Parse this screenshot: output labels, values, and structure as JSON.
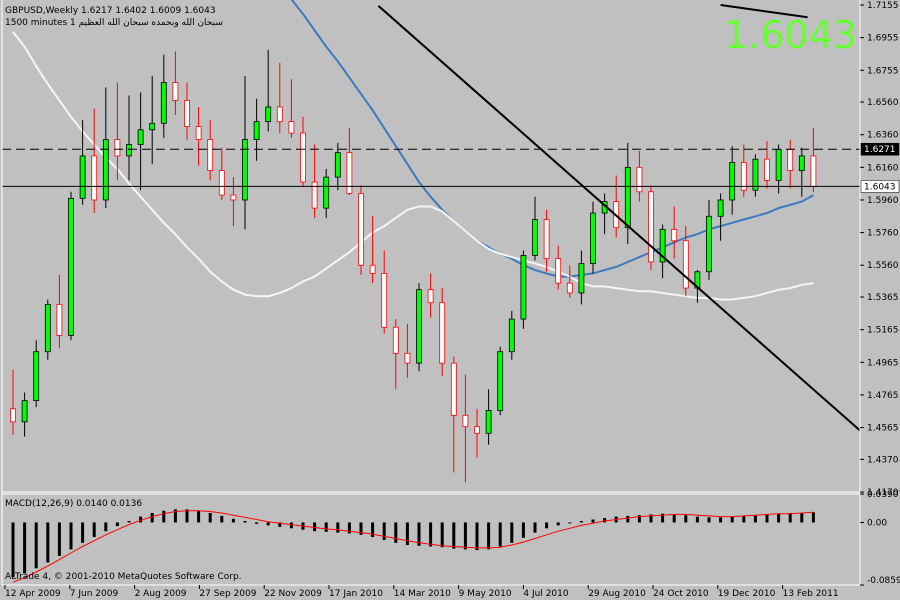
{
  "header": {
    "symbol_line": "GBPUSD,Weekly  1.6217 1.6402 1.6009 1.6043",
    "sub_line": "1500 minutes 1 سبحان الله وبحمده سبحان الله العظيم"
  },
  "big_price": "1.6043",
  "copyright": "ALTrade 4, © 2001-2010 MetaQuotes Software Corp.",
  "colors": {
    "background": "#c0c0c0",
    "bull_candle": "#00ff00",
    "bear_candle": "#ffffff",
    "bull_wick": "#000000",
    "bear_wick": "#ff0000",
    "ma_slow": "#3a7bc0",
    "ma_fast": "#f5f5f5",
    "trendline": "#000000",
    "big_price": "#66ff33",
    "macd_signal": "#ff0000",
    "macd_hist": "#000000"
  },
  "chart_data": {
    "type": "candlestick",
    "symbol": "GBPUSD",
    "timeframe": "Weekly",
    "last_bar": {
      "open": 1.6217,
      "high": 1.6402,
      "low": 1.6009,
      "close": 1.6043
    },
    "price_range": [
      1.417,
      1.7155
    ],
    "price_ticks": [
      "1.7155",
      "1.6955",
      "1.6755",
      "1.6560",
      "1.6360",
      "1.6160",
      "1.5960",
      "1.5760",
      "1.5560",
      "1.5365",
      "1.5165",
      "1.4965",
      "1.4765",
      "1.4565",
      "1.4370",
      "1.4170"
    ],
    "x_ticks": [
      "12 Apr 2009",
      "7 Jun 2009",
      "2 Aug 2009",
      "27 Sep 2009",
      "22 Nov 2009",
      "17 Jan 2010",
      "14 Mar 2010",
      "9 May 2010",
      "4 Jul 2010",
      "29 Aug 2010",
      "24 Oct 2010",
      "19 Dec 2010",
      "13 Feb 2011"
    ],
    "hlines": [
      {
        "label": "1.6271",
        "value": 1.6271,
        "style": "dashed"
      },
      {
        "label": "1.6043",
        "value": 1.6043,
        "style": "solid"
      }
    ],
    "trendline": {
      "from": [
        31.5,
        1.715
      ],
      "to": [
        50,
        1.599
      ]
    },
    "candles": [
      [
        1.468,
        1.492,
        1.452,
        1.46
      ],
      [
        1.46,
        1.478,
        1.451,
        1.473
      ],
      [
        1.473,
        1.51,
        1.469,
        1.503
      ],
      [
        1.503,
        1.535,
        1.498,
        1.532
      ],
      [
        1.532,
        1.55,
        1.505,
        1.513
      ],
      [
        1.513,
        1.601,
        1.51,
        1.597
      ],
      [
        1.597,
        1.645,
        1.593,
        1.623
      ],
      [
        1.623,
        1.652,
        1.588,
        1.596
      ],
      [
        1.596,
        1.665,
        1.591,
        1.633
      ],
      [
        1.633,
        1.668,
        1.608,
        1.623
      ],
      [
        1.623,
        1.66,
        1.608,
        1.63
      ],
      [
        1.63,
        1.662,
        1.602,
        1.639
      ],
      [
        1.639,
        1.672,
        1.618,
        1.643
      ],
      [
        1.643,
        1.685,
        1.634,
        1.668
      ],
      [
        1.668,
        1.687,
        1.648,
        1.657
      ],
      [
        1.657,
        1.668,
        1.633,
        1.641
      ],
      [
        1.641,
        1.653,
        1.617,
        1.633
      ],
      [
        1.633,
        1.645,
        1.608,
        1.614
      ],
      [
        1.614,
        1.628,
        1.596,
        1.599
      ],
      [
        1.599,
        1.61,
        1.58,
        1.596
      ],
      [
        1.596,
        1.672,
        1.578,
        1.633
      ],
      [
        1.633,
        1.658,
        1.62,
        1.644
      ],
      [
        1.644,
        1.688,
        1.638,
        1.653
      ],
      [
        1.653,
        1.68,
        1.637,
        1.644
      ],
      [
        1.644,
        1.67,
        1.634,
        1.637
      ],
      [
        1.637,
        1.647,
        1.604,
        1.607
      ],
      [
        1.607,
        1.63,
        1.585,
        1.591
      ],
      [
        1.591,
        1.615,
        1.585,
        1.61
      ],
      [
        1.61,
        1.631,
        1.602,
        1.625
      ],
      [
        1.625,
        1.64,
        1.599,
        1.6
      ],
      [
        1.6,
        1.605,
        1.55,
        1.556
      ],
      [
        1.556,
        1.586,
        1.545,
        1.551
      ],
      [
        1.551,
        1.565,
        1.514,
        1.518
      ],
      [
        1.518,
        1.523,
        1.48,
        1.502
      ],
      [
        1.502,
        1.52,
        1.487,
        1.496
      ],
      [
        1.496,
        1.545,
        1.491,
        1.541
      ],
      [
        1.541,
        1.551,
        1.524,
        1.533
      ],
      [
        1.533,
        1.542,
        1.488,
        1.496
      ],
      [
        1.496,
        1.5,
        1.429,
        1.464
      ],
      [
        1.464,
        1.489,
        1.423,
        1.457
      ],
      [
        1.457,
        1.468,
        1.438,
        1.453
      ],
      [
        1.453,
        1.48,
        1.446,
        1.467
      ],
      [
        1.467,
        1.506,
        1.464,
        1.503
      ],
      [
        1.503,
        1.528,
        1.498,
        1.523
      ],
      [
        1.523,
        1.565,
        1.517,
        1.562
      ],
      [
        1.562,
        1.598,
        1.559,
        1.584
      ],
      [
        1.584,
        1.59,
        1.552,
        1.56
      ],
      [
        1.56,
        1.568,
        1.541,
        1.545
      ],
      [
        1.545,
        1.556,
        1.536,
        1.539
      ],
      [
        1.539,
        1.565,
        1.532,
        1.557
      ],
      [
        1.557,
        1.595,
        1.551,
        1.588
      ],
      [
        1.588,
        1.6,
        1.575,
        1.595
      ],
      [
        1.595,
        1.611,
        1.573,
        1.579
      ],
      [
        1.579,
        1.631,
        1.569,
        1.616
      ],
      [
        1.616,
        1.626,
        1.595,
        1.601
      ],
      [
        1.601,
        1.605,
        1.553,
        1.558
      ],
      [
        1.558,
        1.581,
        1.548,
        1.578
      ],
      [
        1.578,
        1.592,
        1.56,
        1.571
      ],
      [
        1.571,
        1.58,
        1.537,
        1.542
      ],
      [
        1.542,
        1.553,
        1.533,
        1.552
      ],
      [
        1.552,
        1.596,
        1.547,
        1.586
      ],
      [
        1.586,
        1.6,
        1.571,
        1.596
      ],
      [
        1.596,
        1.629,
        1.587,
        1.619
      ],
      [
        1.619,
        1.63,
        1.598,
        1.602
      ],
      [
        1.602,
        1.624,
        1.598,
        1.621
      ],
      [
        1.621,
        1.632,
        1.603,
        1.608
      ],
      [
        1.608,
        1.63,
        1.6,
        1.627
      ],
      [
        1.627,
        1.633,
        1.603,
        1.614
      ],
      [
        1.614,
        1.628,
        1.598,
        1.623
      ],
      [
        1.623,
        1.6402,
        1.6009,
        1.6043
      ]
    ],
    "ma_slow": {
      "start_index": 24,
      "values": [
        1.719,
        1.71,
        1.7,
        1.69,
        1.681,
        1.671,
        1.661,
        1.651,
        1.64,
        1.629,
        1.618,
        1.607,
        1.598,
        1.59,
        1.583,
        1.577,
        1.571,
        1.567,
        1.563,
        1.56,
        1.556,
        1.553,
        1.551,
        1.549,
        1.549,
        1.55,
        1.551,
        1.553,
        1.555,
        1.558,
        1.561,
        1.564,
        1.567,
        1.57,
        1.573,
        1.575,
        1.578,
        1.58,
        1.582,
        1.584,
        1.586,
        1.588,
        1.591,
        1.593,
        1.595,
        1.599
      ]
    },
    "ma_fast": {
      "start_index": 0,
      "values": [
        1.699,
        1.69,
        1.678,
        1.667,
        1.657,
        1.647,
        1.638,
        1.63,
        1.622,
        1.615,
        1.606,
        1.598,
        1.59,
        1.582,
        1.575,
        1.567,
        1.56,
        1.552,
        1.546,
        1.541,
        1.538,
        1.537,
        1.537,
        1.539,
        1.542,
        1.546,
        1.549,
        1.554,
        1.559,
        1.564,
        1.57,
        1.576,
        1.58,
        1.585,
        1.59,
        1.592,
        1.592,
        1.589,
        1.583,
        1.577,
        1.571,
        1.566,
        1.563,
        1.561,
        1.559,
        1.557,
        1.555,
        1.552,
        1.549,
        1.545,
        1.543,
        1.543,
        1.542,
        1.541,
        1.54,
        1.54,
        1.539,
        1.538,
        1.537,
        1.536,
        1.536,
        1.535,
        1.535,
        1.536,
        1.537,
        1.539,
        1.541,
        1.542,
        1.544,
        1.545
      ]
    },
    "macd": {
      "label": "MACD(12,26,9) 0.0140 0.0136",
      "range": [
        -0.08591,
        0.03907
      ],
      "ticks": [
        "0.03907",
        "0.00",
        "-0.08591"
      ],
      "histogram": [
        -0.075,
        -0.07,
        -0.063,
        -0.055,
        -0.046,
        -0.037,
        -0.028,
        -0.02,
        -0.012,
        -0.005,
        0.002,
        0.008,
        0.013,
        0.016,
        0.018,
        0.018,
        0.016,
        0.013,
        0.009,
        0.005,
        0.002,
        -0.002,
        -0.004,
        -0.006,
        -0.008,
        -0.01,
        -0.012,
        -0.013,
        -0.014,
        -0.015,
        -0.017,
        -0.02,
        -0.024,
        -0.028,
        -0.031,
        -0.032,
        -0.033,
        -0.034,
        -0.036,
        -0.037,
        -0.038,
        -0.037,
        -0.033,
        -0.028,
        -0.021,
        -0.014,
        -0.008,
        -0.004,
        -0.001,
        0.002,
        0.004,
        0.006,
        0.008,
        0.009,
        0.01,
        0.011,
        0.012,
        0.011,
        0.01,
        0.008,
        0.007,
        0.007,
        0.008,
        0.009,
        0.01,
        0.011,
        0.012,
        0.013,
        0.013,
        0.014
      ],
      "signal": [
        -0.082,
        -0.076,
        -0.068,
        -0.06,
        -0.051,
        -0.042,
        -0.033,
        -0.025,
        -0.017,
        -0.01,
        -0.003,
        0.003,
        0.008,
        0.012,
        0.015,
        0.016,
        0.016,
        0.015,
        0.013,
        0.01,
        0.007,
        0.004,
        0.001,
        -0.001,
        -0.003,
        -0.005,
        -0.007,
        -0.009,
        -0.01,
        -0.012,
        -0.014,
        -0.016,
        -0.019,
        -0.022,
        -0.025,
        -0.028,
        -0.03,
        -0.032,
        -0.033,
        -0.034,
        -0.035,
        -0.035,
        -0.034,
        -0.031,
        -0.027,
        -0.022,
        -0.017,
        -0.012,
        -0.008,
        -0.004,
        -0.001,
        0.002,
        0.004,
        0.006,
        0.008,
        0.009,
        0.01,
        0.011,
        0.011,
        0.01,
        0.009,
        0.008,
        0.008,
        0.009,
        0.01,
        0.011,
        0.012,
        0.012,
        0.013,
        0.014
      ]
    }
  }
}
